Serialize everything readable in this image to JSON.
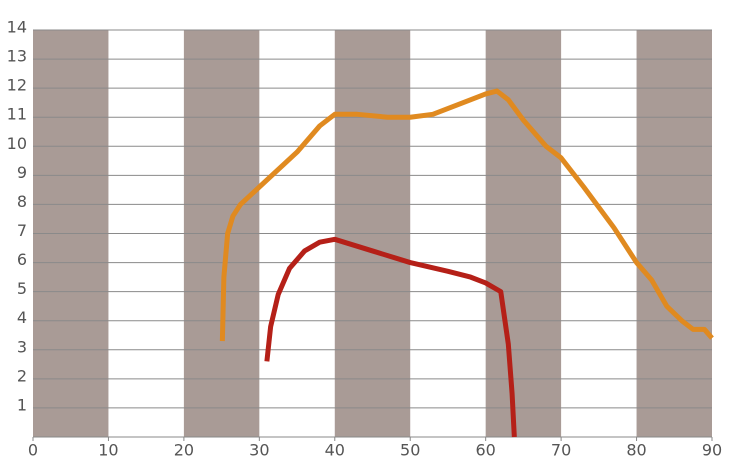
{
  "chart_data": {
    "type": "line",
    "xlim": [
      0,
      90
    ],
    "xticks": [
      0,
      10,
      20,
      30,
      40,
      50,
      60,
      70,
      80,
      90
    ],
    "ylim": [
      0,
      14
    ],
    "yticks": [
      1,
      2,
      3,
      4,
      5,
      6,
      7,
      8,
      9,
      10,
      11,
      12,
      13,
      14
    ],
    "grid": true,
    "band_color": "#a99b96",
    "series": [
      {
        "color": "#e08a20",
        "x": [
          25.1,
          25.3,
          25.8,
          26.5,
          27.5,
          30,
          35,
          38,
          40,
          43,
          47,
          50,
          53,
          57,
          60,
          61.5,
          63,
          65,
          68,
          70,
          73,
          77,
          80,
          82,
          84,
          86,
          87.5,
          89,
          90
        ],
        "values": [
          3.3,
          5.5,
          7.0,
          7.6,
          8.0,
          8.6,
          9.8,
          10.7,
          11.1,
          11.1,
          11.0,
          11.0,
          11.1,
          11.5,
          11.8,
          11.9,
          11.6,
          10.9,
          10.0,
          9.6,
          8.6,
          7.2,
          6.0,
          5.4,
          4.5,
          4.0,
          3.7,
          3.7,
          3.4
        ]
      },
      {
        "color": "#b52018",
        "x": [
          31,
          31.5,
          32.5,
          34,
          36,
          38,
          40,
          45,
          50,
          55,
          58,
          60,
          62,
          63,
          63.5,
          63.8
        ],
        "values": [
          2.6,
          3.8,
          4.9,
          5.8,
          6.4,
          6.7,
          6.8,
          6.4,
          6.0,
          5.7,
          5.5,
          5.3,
          5.0,
          3.2,
          1.5,
          0
        ]
      }
    ]
  }
}
